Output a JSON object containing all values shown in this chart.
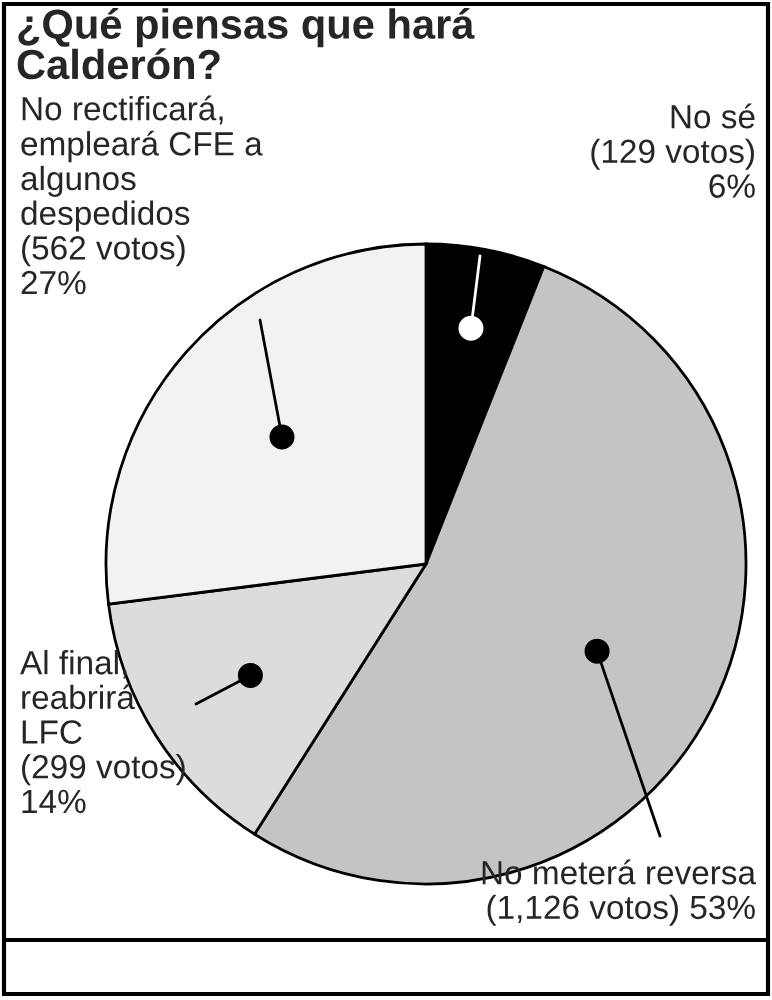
{
  "chart_data": {
    "type": "pie",
    "title": "¿Qué piensas que hará\nCalderón?",
    "categories": [
      "No sé",
      "No meterá reversa",
      "Al final,\nreabrirá\nLFC",
      "No rectificará,\nempleará CFE a\nalgunos\ndespedidos"
    ],
    "values": [
      6,
      53,
      14,
      27
    ],
    "colors": [
      "#000000",
      "#c4c4c4",
      "#dcdcdc",
      "#f2f2f2"
    ],
    "value_labels": [
      "(129 votos)\n6%",
      "(1,126 votos) 53%",
      "(299 votos)\n14%",
      "(562 votos)\n27%"
    ]
  }
}
